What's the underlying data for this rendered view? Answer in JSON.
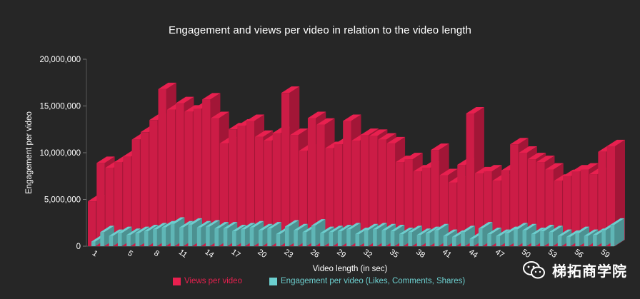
{
  "chart_data": {
    "type": "bar",
    "title": "Engagement and views per video in relation to the video length",
    "xlabel": "Video length (in sec)",
    "ylabel": "Engagement per video",
    "ylim": [
      0,
      20000000
    ],
    "yticks": [
      "0",
      "5,000,000",
      "10,000,000",
      "15,000,000",
      "20,000,000"
    ],
    "ytick_values": [
      0,
      5000000,
      10000000,
      15000000,
      20000000
    ],
    "x": [
      1,
      2,
      3,
      4,
      5,
      6,
      7,
      8,
      9,
      10,
      11,
      12,
      13,
      14,
      15,
      16,
      17,
      18,
      19,
      20,
      21,
      22,
      23,
      24,
      25,
      26,
      27,
      28,
      29,
      30,
      31,
      32,
      33,
      34,
      35,
      36,
      37,
      38,
      39,
      40,
      41,
      42,
      43,
      44,
      45,
      46,
      47,
      48,
      49,
      50,
      51,
      52,
      53,
      54,
      55,
      56,
      57,
      58,
      59,
      60
    ],
    "xtick_labels": [
      "1",
      "5",
      "8",
      "11",
      "14",
      "17",
      "20",
      "23",
      "26",
      "29",
      "32",
      "35",
      "38",
      "41",
      "44",
      "47",
      "50",
      "53",
      "56",
      "59"
    ],
    "xtick_values": [
      1,
      5,
      8,
      11,
      14,
      17,
      20,
      23,
      26,
      29,
      32,
      35,
      38,
      41,
      44,
      47,
      50,
      53,
      56,
      59
    ],
    "legend_position": "bottom",
    "grid": false,
    "series": [
      {
        "name": "Views per video",
        "color": "#e8204f",
        "values": [
          4800000,
          8900000,
          8400000,
          9000000,
          9600000,
          11400000,
          12200000,
          13500000,
          16800000,
          14600000,
          15300000,
          14400000,
          14700000,
          15700000,
          13700000,
          11000000,
          12500000,
          12900000,
          13400000,
          11700000,
          11300000,
          12100000,
          16400000,
          11900000,
          10200000,
          13700000,
          13000000,
          10500000,
          10900000,
          13400000,
          11300000,
          11900000,
          11800000,
          11400000,
          11000000,
          9000000,
          9300000,
          8000000,
          8400000,
          10300000,
          7600000,
          6800000,
          8700000,
          14200000,
          7800000,
          8000000,
          7000000,
          8100000,
          10900000,
          10000000,
          9300000,
          9000000,
          8200000,
          7000000,
          7500000,
          8000000,
          8200000,
          7700000,
          10100000,
          10700000
        ]
      },
      {
        "name": "Engagement per video (Likes, Comments, Shares)",
        "color": "#6ccfcf",
        "values": [
          500000,
          1500000,
          1100000,
          1400000,
          1200000,
          1400000,
          1600000,
          1800000,
          2000000,
          2400000,
          2000000,
          2300000,
          2000000,
          2100000,
          1900000,
          1900000,
          1600000,
          1800000,
          2000000,
          1700000,
          1900000,
          1300000,
          2100000,
          1700000,
          1500000,
          2200000,
          1400000,
          1500000,
          1600000,
          1800000,
          1300000,
          1700000,
          1800000,
          1700000,
          1600000,
          1300000,
          1500000,
          1200000,
          1400000,
          1700000,
          1100000,
          1000000,
          1500000,
          800000,
          1900000,
          1300000,
          1100000,
          1400000,
          1800000,
          1700000,
          1300000,
          1600000,
          1500000,
          1100000,
          1000000,
          1400000,
          1100000,
          1200000,
          1700000,
          2300000
        ]
      }
    ]
  },
  "watermark": {
    "text": "梯拓商学院"
  }
}
